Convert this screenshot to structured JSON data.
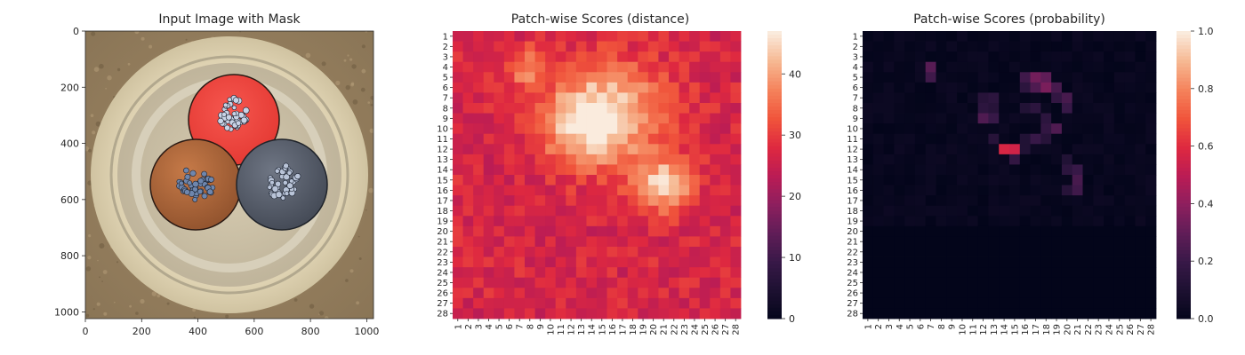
{
  "chart_data": [
    {
      "type": "image",
      "title": "Input Image with Mask",
      "xlim": [
        0,
        1024
      ],
      "ylim": [
        0,
        1024
      ],
      "x_ticks": [
        "0",
        "200",
        "400",
        "600",
        "800",
        "1000"
      ],
      "y_ticks": [
        "0",
        "200",
        "400",
        "600",
        "800",
        "1000"
      ],
      "objects": [
        {
          "name": "cable-core-red-masked",
          "color": "#f0463f",
          "center": [
            515,
            315
          ],
          "radius": 160
        },
        {
          "name": "cable-core-brown",
          "color": "#b8693c",
          "center": [
            385,
            545
          ],
          "radius": 160
        },
        {
          "name": "cable-core-grey",
          "color": "#5d6370",
          "center": [
            695,
            545
          ],
          "radius": 160
        }
      ]
    },
    {
      "type": "heatmap",
      "title": "Patch-wise Scores (distance)",
      "rows": 28,
      "cols": 28,
      "x_ticks": [
        "1",
        "2",
        "3",
        "4",
        "5",
        "6",
        "7",
        "8",
        "9",
        "10",
        "11",
        "12",
        "13",
        "14",
        "15",
        "16",
        "17",
        "18",
        "19",
        "20",
        "21",
        "22",
        "23",
        "24",
        "25",
        "26",
        "27",
        "28"
      ],
      "y_ticks": [
        "1",
        "2",
        "3",
        "4",
        "5",
        "6",
        "7",
        "8",
        "9",
        "10",
        "11",
        "12",
        "13",
        "14",
        "15",
        "16",
        "17",
        "18",
        "19",
        "20",
        "21",
        "22",
        "23",
        "24",
        "25",
        "26",
        "27",
        "28"
      ],
      "colorbar": {
        "min": 0,
        "max": 47,
        "ticks": [
          "0",
          "10",
          "20",
          "30",
          "40"
        ]
      },
      "base_value": 27,
      "hotspots": [
        {
          "row": 8.5,
          "col": 15.5,
          "sr": 3.2,
          "sc": 4.0,
          "amp": 19
        },
        {
          "row": 10.5,
          "col": 13,
          "sr": 2.5,
          "sc": 2.5,
          "amp": 8
        },
        {
          "row": 15.5,
          "col": 21,
          "sr": 1.8,
          "sc": 2.0,
          "amp": 17
        },
        {
          "row": 4,
          "col": 7.5,
          "sr": 1.3,
          "sc": 1.3,
          "amp": 10
        }
      ]
    },
    {
      "type": "heatmap",
      "title": "Patch-wise Scores (probability)",
      "rows": 28,
      "cols": 28,
      "x_ticks": [
        "1",
        "2",
        "3",
        "4",
        "5",
        "6",
        "7",
        "8",
        "9",
        "10",
        "11",
        "12",
        "13",
        "14",
        "15",
        "16",
        "17",
        "18",
        "19",
        "20",
        "21",
        "22",
        "23",
        "24",
        "25",
        "26",
        "27",
        "28"
      ],
      "y_ticks": [
        "1",
        "2",
        "3",
        "4",
        "5",
        "6",
        "7",
        "8",
        "9",
        "10",
        "11",
        "12",
        "13",
        "14",
        "15",
        "16",
        "17",
        "18",
        "19",
        "20",
        "21",
        "22",
        "23",
        "24",
        "25",
        "26",
        "27",
        "28"
      ],
      "colorbar": {
        "min": 0,
        "max": 1,
        "ticks": [
          "0.0",
          "0.2",
          "0.4",
          "0.6",
          "0.8",
          "1.0"
        ]
      },
      "cells": [
        {
          "row": 4,
          "col": 7,
          "value": 0.28
        },
        {
          "row": 5,
          "col": 7,
          "value": 0.22
        },
        {
          "row": 5,
          "col": 16,
          "value": 0.22
        },
        {
          "row": 5,
          "col": 17,
          "value": 0.34
        },
        {
          "row": 5,
          "col": 18,
          "value": 0.3
        },
        {
          "row": 6,
          "col": 16,
          "value": 0.16
        },
        {
          "row": 6,
          "col": 17,
          "value": 0.26
        },
        {
          "row": 6,
          "col": 18,
          "value": 0.36
        },
        {
          "row": 6,
          "col": 19,
          "value": 0.24
        },
        {
          "row": 7,
          "col": 12,
          "value": 0.14
        },
        {
          "row": 7,
          "col": 13,
          "value": 0.16
        },
        {
          "row": 7,
          "col": 19,
          "value": 0.18
        },
        {
          "row": 7,
          "col": 20,
          "value": 0.24
        },
        {
          "row": 8,
          "col": 12,
          "value": 0.16
        },
        {
          "row": 8,
          "col": 13,
          "value": 0.14
        },
        {
          "row": 8,
          "col": 16,
          "value": 0.12
        },
        {
          "row": 8,
          "col": 17,
          "value": 0.16
        },
        {
          "row": 8,
          "col": 20,
          "value": 0.2
        },
        {
          "row": 9,
          "col": 12,
          "value": 0.26
        },
        {
          "row": 9,
          "col": 13,
          "value": 0.2
        },
        {
          "row": 9,
          "col": 18,
          "value": 0.16
        },
        {
          "row": 10,
          "col": 18,
          "value": 0.18
        },
        {
          "row": 10,
          "col": 19,
          "value": 0.26
        },
        {
          "row": 11,
          "col": 13,
          "value": 0.14
        },
        {
          "row": 11,
          "col": 16,
          "value": 0.12
        },
        {
          "row": 11,
          "col": 17,
          "value": 0.2
        },
        {
          "row": 11,
          "col": 18,
          "value": 0.14
        },
        {
          "row": 12,
          "col": 14,
          "value": 0.58
        },
        {
          "row": 12,
          "col": 15,
          "value": 0.56
        },
        {
          "row": 12,
          "col": 16,
          "value": 0.12
        },
        {
          "row": 13,
          "col": 15,
          "value": 0.18
        },
        {
          "row": 13,
          "col": 20,
          "value": 0.12
        },
        {
          "row": 14,
          "col": 20,
          "value": 0.16
        },
        {
          "row": 14,
          "col": 21,
          "value": 0.2
        },
        {
          "row": 15,
          "col": 21,
          "value": 0.24
        },
        {
          "row": 16,
          "col": 20,
          "value": 0.14
        },
        {
          "row": 16,
          "col": 21,
          "value": 0.22
        }
      ]
    }
  ]
}
